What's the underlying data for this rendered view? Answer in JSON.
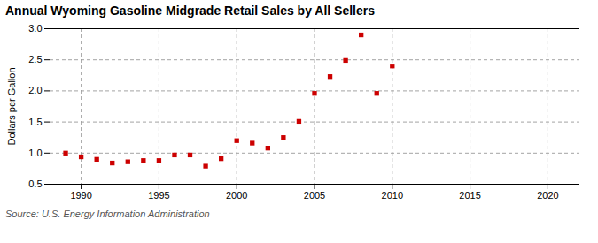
{
  "chart_data": {
    "type": "scatter",
    "title": "Annual Wyoming Gasoline Midgrade Retail Sales by All Sellers",
    "ylabel": "Dollars per Gallon",
    "annotation": "Source: U.S. Energy Information Administration",
    "x": [
      1989,
      1990,
      1991,
      1992,
      1993,
      1994,
      1995,
      1996,
      1997,
      1998,
      1999,
      2000,
      2001,
      2002,
      2003,
      2004,
      2005,
      2006,
      2007,
      2008,
      2009,
      2010
    ],
    "values": [
      1.0,
      0.94,
      0.9,
      0.84,
      0.86,
      0.88,
      0.88,
      0.97,
      0.97,
      0.79,
      0.91,
      1.2,
      1.16,
      1.08,
      1.25,
      1.51,
      1.96,
      2.23,
      2.49,
      2.9,
      1.96,
      2.4
    ],
    "color": "#cc0000",
    "marker": "square",
    "xlim": [
      1988,
      2022
    ],
    "ylim": [
      0.5,
      3.0
    ],
    "xticks": [
      1990,
      1995,
      2000,
      2005,
      2010,
      2015,
      2020
    ],
    "yticks": [
      0.5,
      {
        "value": 1.0,
        "label": "1.0"
      },
      1.5,
      {
        "value": 2.0,
        "label": "2.0"
      },
      2.5,
      {
        "value": 3.0,
        "label": "3.0"
      }
    ],
    "grid": true
  }
}
